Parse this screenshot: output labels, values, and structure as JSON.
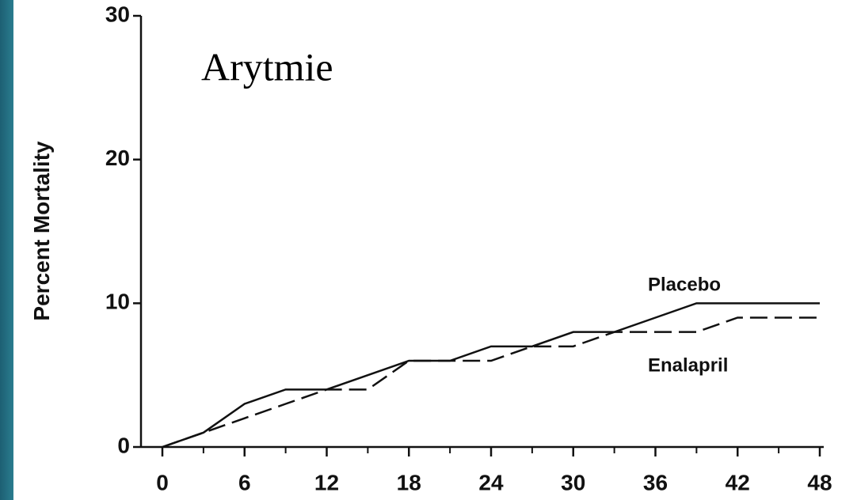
{
  "chart_data": {
    "type": "line",
    "title": "Arytmie",
    "y_label": "Percent Mortality",
    "x": [
      0,
      3,
      6,
      9,
      12,
      15,
      18,
      21,
      24,
      27,
      30,
      33,
      36,
      39,
      42,
      45,
      48
    ],
    "series": [
      {
        "name": "Placebo",
        "color": "#111111",
        "dash": "solid",
        "values": [
          0,
          1,
          3,
          4,
          4,
          5,
          6,
          6,
          7,
          7,
          8,
          8,
          9,
          10,
          10,
          10,
          10
        ]
      },
      {
        "name": "Enalapril",
        "color": "#111111",
        "dash": "dashed",
        "values": [
          0,
          1,
          2,
          3,
          4,
          4,
          6,
          6,
          6,
          7,
          7,
          8,
          8,
          8,
          9,
          9,
          9
        ]
      }
    ],
    "xlim": [
      0,
      48
    ],
    "xticks": [
      0,
      6,
      12,
      18,
      24,
      30,
      36,
      42,
      48
    ],
    "ylim": [
      0,
      30
    ],
    "yticks": [
      0,
      10,
      20,
      30
    ],
    "grid": false
  }
}
